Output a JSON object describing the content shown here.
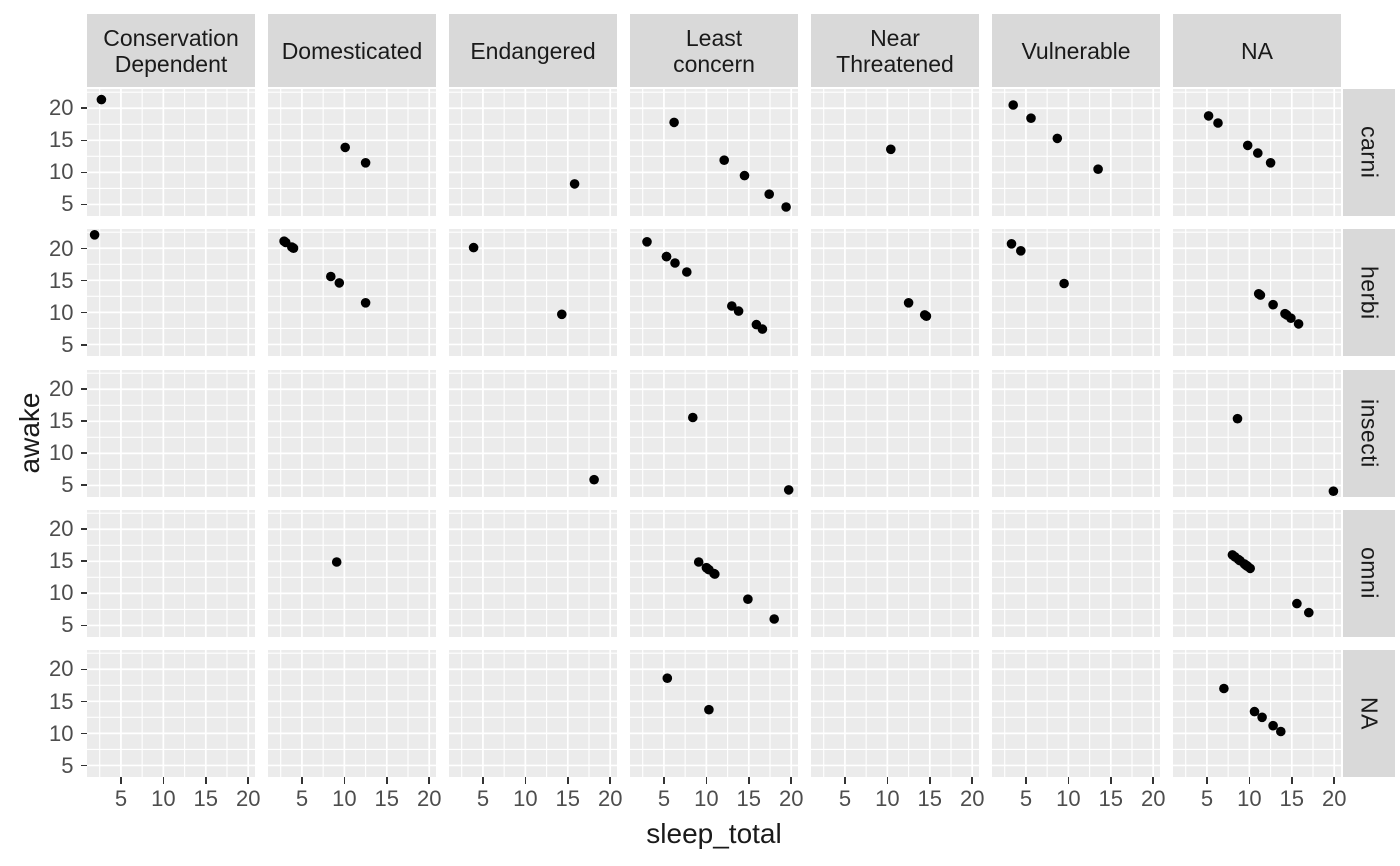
{
  "chart_data": {
    "type": "scatter",
    "title": "",
    "xlabel": "sleep_total",
    "ylabel": "awake",
    "xlim": [
      1.0,
      20.8
    ],
    "ylim": [
      3.2,
      23.0
    ],
    "grid": "on",
    "legend_position": "none",
    "x_ticks": [
      {
        "v": 5,
        "label": "5"
      },
      {
        "v": 10,
        "label": "10"
      },
      {
        "v": 15,
        "label": "15"
      },
      {
        "v": 20,
        "label": "20"
      }
    ],
    "y_ticks": [
      {
        "v": 20,
        "label": "20"
      },
      {
        "v": 15,
        "label": "15"
      },
      {
        "v": 10,
        "label": "10"
      },
      {
        "v": 5,
        "label": "5"
      }
    ],
    "x_minor": [
      2.5,
      7.5,
      12.5,
      17.5
    ],
    "y_minor": [
      7.5,
      12.5,
      17.5,
      22.5
    ],
    "col_facets": [
      "Conservation\nDependent",
      "Domesticated",
      "Endangered",
      "Least\nconcern",
      "Near\nThreatened",
      "Vulnerable",
      "NA"
    ],
    "row_facets": [
      "carni",
      "herbi",
      "insecti",
      "omni",
      "NA"
    ],
    "panels": [
      {
        "r": 0,
        "c": 0,
        "row": "carni",
        "col": "Conservation Dependent",
        "points": [
          [
            2.7,
            21.35
          ]
        ]
      },
      {
        "r": 0,
        "c": 1,
        "row": "carni",
        "col": "Domesticated",
        "points": [
          [
            10.1,
            13.9
          ],
          [
            12.5,
            11.5
          ]
        ]
      },
      {
        "r": 0,
        "c": 2,
        "row": "carni",
        "col": "Endangered",
        "points": [
          [
            15.8,
            8.2
          ]
        ]
      },
      {
        "r": 0,
        "c": 3,
        "row": "carni",
        "col": "Least concern",
        "points": [
          [
            6.2,
            17.8
          ],
          [
            12.1,
            11.9
          ],
          [
            14.5,
            9.5
          ],
          [
            17.4,
            6.6
          ],
          [
            19.4,
            4.6
          ]
        ]
      },
      {
        "r": 0,
        "c": 4,
        "row": "carni",
        "col": "Near Threatened",
        "points": [
          [
            10.4,
            13.6
          ]
        ]
      },
      {
        "r": 0,
        "c": 5,
        "row": "carni",
        "col": "Vulnerable",
        "points": [
          [
            3.5,
            20.5
          ],
          [
            5.6,
            18.45
          ],
          [
            8.7,
            15.3
          ],
          [
            13.5,
            10.5
          ]
        ]
      },
      {
        "r": 0,
        "c": 6,
        "row": "carni",
        "col": "NA",
        "points": [
          [
            5.2,
            18.8
          ],
          [
            6.3,
            17.7
          ],
          [
            9.8,
            14.2
          ],
          [
            11.0,
            13.0
          ],
          [
            12.5,
            11.5
          ]
        ]
      },
      {
        "r": 1,
        "c": 0,
        "row": "herbi",
        "col": "Conservation Dependent",
        "points": [
          [
            1.9,
            22.1
          ]
        ]
      },
      {
        "r": 1,
        "c": 1,
        "row": "herbi",
        "col": "Domesticated",
        "points": [
          [
            2.9,
            21.1
          ],
          [
            3.1,
            20.9
          ],
          [
            3.8,
            20.2
          ],
          [
            4.0,
            20.0
          ],
          [
            8.4,
            15.6
          ],
          [
            9.4,
            14.6
          ],
          [
            12.5,
            11.5
          ]
        ]
      },
      {
        "r": 1,
        "c": 2,
        "row": "herbi",
        "col": "Endangered",
        "points": [
          [
            3.9,
            20.1
          ],
          [
            14.3,
            9.7
          ]
        ]
      },
      {
        "r": 1,
        "c": 3,
        "row": "herbi",
        "col": "Least concern",
        "points": [
          [
            3.0,
            21.0
          ],
          [
            5.3,
            18.7
          ],
          [
            5.3,
            18.7
          ],
          [
            6.3,
            17.7
          ],
          [
            7.7,
            16.3
          ],
          [
            13.0,
            11.0
          ],
          [
            13.8,
            10.2
          ],
          [
            15.9,
            8.1
          ],
          [
            16.6,
            7.4
          ]
        ]
      },
      {
        "r": 1,
        "c": 4,
        "row": "herbi",
        "col": "Near Threatened",
        "points": [
          [
            12.5,
            11.5
          ],
          [
            14.4,
            9.6
          ],
          [
            14.6,
            9.4
          ]
        ]
      },
      {
        "r": 1,
        "c": 5,
        "row": "herbi",
        "col": "Vulnerable",
        "points": [
          [
            3.3,
            20.7
          ],
          [
            4.4,
            19.6
          ],
          [
            9.5,
            14.5
          ]
        ]
      },
      {
        "r": 1,
        "c": 6,
        "row": "herbi",
        "col": "NA",
        "points": [
          [
            11.1,
            12.9
          ],
          [
            11.3,
            12.7
          ],
          [
            12.8,
            11.2
          ],
          [
            14.2,
            9.8
          ],
          [
            14.4,
            9.6
          ],
          [
            14.9,
            9.1
          ],
          [
            15.8,
            8.2
          ]
        ]
      },
      {
        "r": 2,
        "c": 2,
        "row": "insecti",
        "col": "Endangered",
        "points": [
          [
            18.1,
            5.9
          ]
        ]
      },
      {
        "r": 2,
        "c": 3,
        "row": "insecti",
        "col": "Least concern",
        "points": [
          [
            8.4,
            15.6
          ],
          [
            19.7,
            4.3
          ]
        ]
      },
      {
        "r": 2,
        "c": 6,
        "row": "insecti",
        "col": "NA",
        "points": [
          [
            8.6,
            15.4
          ],
          [
            19.9,
            4.1
          ]
        ]
      },
      {
        "r": 3,
        "c": 1,
        "row": "omni",
        "col": "Domesticated",
        "points": [
          [
            9.1,
            14.9
          ]
        ]
      },
      {
        "r": 3,
        "c": 3,
        "row": "omni",
        "col": "Least concern",
        "points": [
          [
            9.1,
            14.9
          ],
          [
            10.0,
            14.0
          ],
          [
            10.1,
            13.9
          ],
          [
            10.3,
            13.7
          ],
          [
            10.9,
            13.1
          ],
          [
            11.0,
            13.0
          ],
          [
            14.9,
            9.1
          ],
          [
            18.0,
            6.0
          ]
        ]
      },
      {
        "r": 3,
        "c": 6,
        "row": "omni",
        "col": "NA",
        "points": [
          [
            8.0,
            16.0
          ],
          [
            8.3,
            15.7
          ],
          [
            8.7,
            15.3
          ],
          [
            8.9,
            15.1
          ],
          [
            9.4,
            14.6
          ],
          [
            9.6,
            14.4
          ],
          [
            9.7,
            14.3
          ],
          [
            9.8,
            14.2
          ],
          [
            10.1,
            13.9
          ],
          [
            15.6,
            8.4
          ],
          [
            17.0,
            7.0
          ]
        ]
      },
      {
        "r": 4,
        "c": 3,
        "row": "NA",
        "col": "Least concern",
        "points": [
          [
            5.4,
            18.6
          ],
          [
            10.3,
            13.7
          ]
        ]
      },
      {
        "r": 4,
        "c": 6,
        "row": "NA",
        "col": "NA",
        "points": [
          [
            7.0,
            17.0
          ],
          [
            10.6,
            13.4
          ],
          [
            11.5,
            12.5
          ],
          [
            12.8,
            11.2
          ],
          [
            13.7,
            10.3
          ]
        ]
      }
    ],
    "colors": {
      "panel_bg": "#EBEBEB",
      "strip_bg": "#D9D9D9",
      "grid": "#FFFFFF",
      "point": "#000000",
      "tick_mark": "#333333",
      "tick_label": "#4D4D4D",
      "text": "#1A1A1A",
      "background": "#FFFFFF"
    }
  }
}
